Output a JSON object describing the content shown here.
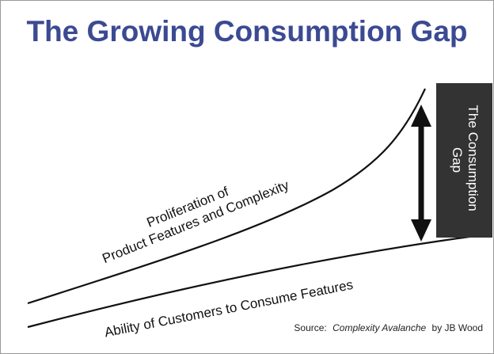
{
  "title": "The Growing Consumption Gap",
  "curves": [
    {
      "label_lines": [
        "Proliferation of",
        "Product Features and Complexity"
      ]
    },
    {
      "label_lines": [
        "Ability of Customers to Consume Features"
      ]
    }
  ],
  "gap_label_lines": [
    "The Consumption",
    "Gap"
  ],
  "source": {
    "prefix": "Source:",
    "book": "Complexity Avalanche",
    "suffix": "by JB Wood"
  }
}
